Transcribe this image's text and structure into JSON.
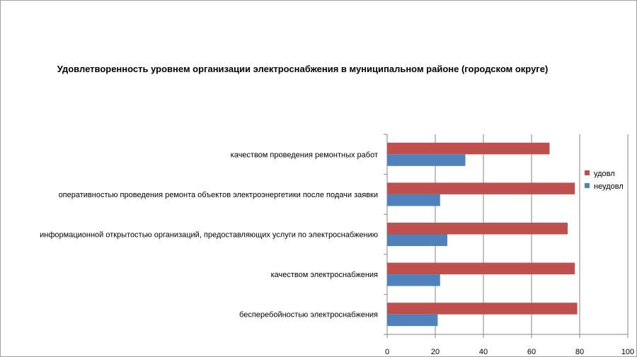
{
  "chart_data": {
    "type": "bar",
    "orientation": "horizontal",
    "title": "Удовлетворенность уровнем организации электроснабжения в муниципальном районе (городском округе)",
    "categories": [
      "качеством проведения ремонтных работ",
      "оперативностью проведения ремонта объектов электроэнергетики после подачи заявки",
      "информационной открытостью организаций, предоставляющих услуги по электроснабжению",
      "качеством электроснабжения",
      "бесперебойностью электроснабжения"
    ],
    "series": [
      {
        "name": "удовл",
        "color": "#c0504d",
        "values": [
          67.5,
          78,
          75,
          78,
          79
        ]
      },
      {
        "name": "неудовл",
        "color": "#4f81bd",
        "values": [
          32.5,
          22,
          25,
          22,
          21
        ]
      }
    ],
    "xlim": [
      0,
      100
    ],
    "xticks": [
      "0",
      "20",
      "40",
      "60",
      "80",
      "100"
    ],
    "legend_position": "right",
    "grid": "vertical"
  }
}
